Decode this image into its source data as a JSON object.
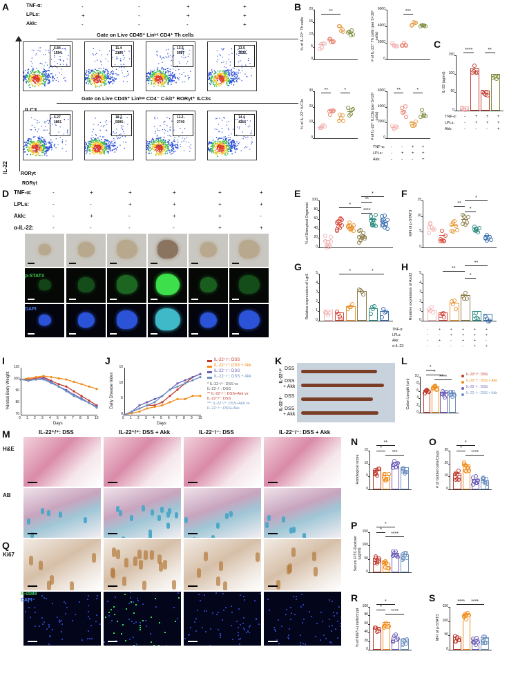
{
  "panel_letters": {
    "A": "A",
    "B": "B",
    "C": "C",
    "D": "D",
    "E": "E",
    "F": "F",
    "G": "G",
    "H": "H",
    "I": "I",
    "J": "J",
    "K": "K",
    "L": "L",
    "M": "M",
    "N": "N",
    "O": "O",
    "P": "P",
    "Q": "Q",
    "R": "R",
    "S": "S"
  },
  "panelA": {
    "rows": [
      "TNF-α:",
      "LPLs:",
      "Akk:"
    ],
    "cols": [
      [
        "-",
        "-",
        "+",
        "+"
      ],
      [
        "+",
        "-",
        "+",
        "+"
      ],
      [
        "-",
        "-",
        "-",
        "+"
      ]
    ],
    "gate1": "Gate on Live CD45⁺ Linᴵⁿᵗ CD4⁺ Th cells",
    "gate2": "Gate on Live CD45⁺ Linˡᵒʷ CD4⁻ C-kit⁺ RORγt⁺ ILC3s",
    "th": "Th",
    "ilc3": "ILC3",
    "ylab": "IL-22",
    "xlab": "RORγt",
    "th_vals": [
      [
        "6.84",
        "1594"
      ],
      [
        "11.4",
        "2106"
      ],
      [
        "13.5",
        "5087"
      ],
      [
        "13.5",
        "3522"
      ]
    ],
    "ilc_vals": [
      [
        "6.27",
        "1851"
      ],
      [
        "18.2",
        "5995"
      ],
      [
        "11.2",
        "2749"
      ],
      [
        "14.4",
        "4316"
      ]
    ]
  },
  "panelB": {
    "ylab1": "% of IL-22⁺ Th cells",
    "ylab2": "# of IL-22⁺ Th cells (per 5×10⁵ cells)",
    "ylab3": "% of IL-22⁺ ILC3s",
    "ylab4": "# of IL-22⁺ ILC3s (per 5×10⁵ cells)",
    "yt1": [
      "0",
      "5",
      "10",
      "15",
      "20"
    ],
    "yt2": [
      "0",
      "2000",
      "4000",
      "6000"
    ],
    "yt3": [
      "0",
      "10",
      "20",
      "30"
    ],
    "yt4": [
      "0",
      "2000",
      "4000",
      "6000"
    ],
    "sig1": "**",
    "sig2": "***",
    "sig3a": "**",
    "sig3b": "*",
    "sig4a": "**",
    "sig4b": "*",
    "rows": [
      "TNF-α:",
      "LPLs:",
      "Akk:"
    ],
    "cols": [
      [
        "-",
        "-",
        "+",
        "+"
      ],
      [
        "-",
        "+",
        "+",
        "+"
      ],
      [
        "-",
        "-",
        "-",
        "+"
      ]
    ]
  },
  "panelC": {
    "ylab": "IL-22 (pg/ml)",
    "yt": [
      "0",
      "50",
      "100",
      "150"
    ],
    "sig1": "****",
    "sig2": "**",
    "rows": [
      "TNF-α:",
      "LPLs:",
      "Akk:"
    ],
    "cols": [
      [
        "-",
        "+",
        "+",
        "+"
      ],
      [
        "-",
        "+",
        "+",
        "+"
      ],
      [
        "-",
        "-",
        "-",
        "+"
      ]
    ]
  },
  "panelD": {
    "rows": [
      "TNF-α:",
      "LPLs:",
      "Akk:",
      "α-IL-22:"
    ],
    "cols": [
      [
        "-",
        "-",
        "-",
        "-"
      ],
      [
        "+",
        "-",
        "+",
        "-"
      ],
      [
        "+",
        "+",
        "-",
        "-"
      ],
      [
        "+",
        "+",
        "+",
        "-"
      ],
      [
        "+",
        "+",
        "+",
        "+"
      ],
      [
        "+",
        "+",
        "-",
        "+"
      ]
    ],
    "cols_note": "",
    "lab_pstat": "p-STAT3",
    "lab_dapi": "DAPI"
  },
  "panelE": {
    "ylab": "% of Disrupted Organoid",
    "yt": [
      "0",
      "20",
      "40",
      "60",
      "80",
      "100"
    ],
    "sig": [
      "*",
      "**",
      "*",
      "****"
    ]
  },
  "panelF": {
    "ylab": "MFI of p-STAT3",
    "yt": [
      "0",
      "5",
      "10",
      "15"
    ],
    "sig": [
      "*",
      "**",
      "*"
    ]
  },
  "panelG": {
    "ylab": "Relative expression of Lgr5",
    "yt": [
      "0",
      "1",
      "2",
      "3",
      "4",
      "5"
    ],
    "sig": [
      "*",
      "*"
    ]
  },
  "panelH": {
    "ylab": "Relative expression of Ascl2",
    "yt": [
      "0",
      "1",
      "2",
      "3",
      "4",
      "5"
    ],
    "sig": [
      "**",
      "**",
      "*"
    ],
    "rows": [
      "TNF-α:",
      "LPLs:",
      "Akk:",
      "α-IL-22:"
    ],
    "cols": [
      [
        "-",
        "+",
        "+",
        "+",
        "+",
        "+"
      ],
      [
        "-",
        "-",
        "+",
        "+",
        "+",
        "+"
      ],
      [
        "-",
        "+",
        "-",
        "+",
        "+",
        "-"
      ],
      [
        "-",
        "-",
        "-",
        "-",
        "+",
        "+"
      ]
    ]
  },
  "panelI": {
    "ylab": "%Initial Body Weight",
    "xlab": "Days",
    "yt": [
      "70",
      "80",
      "90",
      "100",
      "110"
    ],
    "xt": [
      "0",
      "1",
      "2",
      "3",
      "4",
      "5",
      "6",
      "7",
      "8",
      "9",
      "10"
    ]
  },
  "panelJ": {
    "ylab": "Daily Disease Index",
    "xlab": "Days",
    "yt": [
      "0",
      "5",
      "10",
      "15"
    ],
    "xt": [
      "0",
      "1",
      "2",
      "3",
      "4",
      "5",
      "6",
      "7",
      "8",
      "9",
      "10"
    ],
    "legend": [
      "IL-22⁺/⁺: DSS",
      "IL-22⁺/⁺: DSS + Akk",
      "IL-22⁻/⁻: DSS",
      "IL-22⁻/⁻: DSS + Akk"
    ],
    "notes": [
      "* IL-22⁺/⁺: DSS vs",
      "IL-22⁻/⁻: DSS",
      "** IL-22⁺/⁺: DSS+Akk vs",
      "IL-22⁺/⁺: DSS",
      "*** IL-22⁺/⁺: DSS+Akk vs",
      "IL-22⁻/⁻: DSS+Akk"
    ]
  },
  "panelK": {
    "lab1": "IL-22⁺/⁺",
    "lab2": "IL-22⁻/⁻",
    "dss": "DSS",
    "dssakk1": "DSS",
    "dssakk2": "+ Akk"
  },
  "panelL": {
    "ylab": "Colon Length (cm)",
    "yt": [
      "0",
      "2",
      "4",
      "6",
      "8",
      "10"
    ],
    "sig": [
      "*",
      "*",
      "****"
    ],
    "legend": [
      "IL-22⁺/⁺: DSS",
      "IL-22⁺/⁺: DSS + Akk",
      "IL-22⁻/⁻: DSS",
      "IL-22⁻/⁻: DSS + Akk"
    ]
  },
  "panelM": {
    "heads": [
      "IL-22⁺/⁺: DSS",
      "IL-22⁺/⁺: DSS + Akk",
      "IL-22⁻/⁻: DSS",
      "IL-22⁻/⁻: DSS + Akk"
    ],
    "he": "H&E",
    "ab": "AB"
  },
  "panelN": {
    "ylab": "Histological score",
    "yt": [
      "0",
      "5",
      "10",
      "15"
    ],
    "sig": [
      "**",
      "*",
      "***"
    ]
  },
  "panelO": {
    "ylab": "# of Goblet cells/Crypt",
    "yt": [
      "0",
      "10",
      "20",
      "30"
    ],
    "sig": [
      "*",
      "*",
      "****"
    ]
  },
  "panelP": {
    "ylab": "Serum FITC-Dextran (μg/ml)",
    "yt": [
      "0",
      "50",
      "100",
      "150"
    ],
    "sig": [
      "*",
      "*",
      "****"
    ]
  },
  "panelQ": {
    "ki67": "Ki67",
    "pstat": "P-stat3",
    "dapi": "DAPI"
  },
  "panelR": {
    "ylab": "% of Ki67(+) cells/crypt",
    "yt": [
      "0",
      "20",
      "40",
      "60",
      "80",
      "100"
    ],
    "sig": [
      "*",
      "*",
      "****"
    ]
  },
  "panelS": {
    "ylab": "MFI of p-STAT3",
    "yt": [
      "0",
      "50",
      "100",
      "150"
    ],
    "sig": [
      "****",
      "****"
    ]
  },
  "colors": {
    "red": "#c0392b",
    "orange": "#f08c1a",
    "purple": "#6c5fb8",
    "blue": "#6a8fc0",
    "pink": "#e8a0a0",
    "olive": "#7d8c3c",
    "teal": "#2a9d8f",
    "green": "#3aa655"
  }
}
